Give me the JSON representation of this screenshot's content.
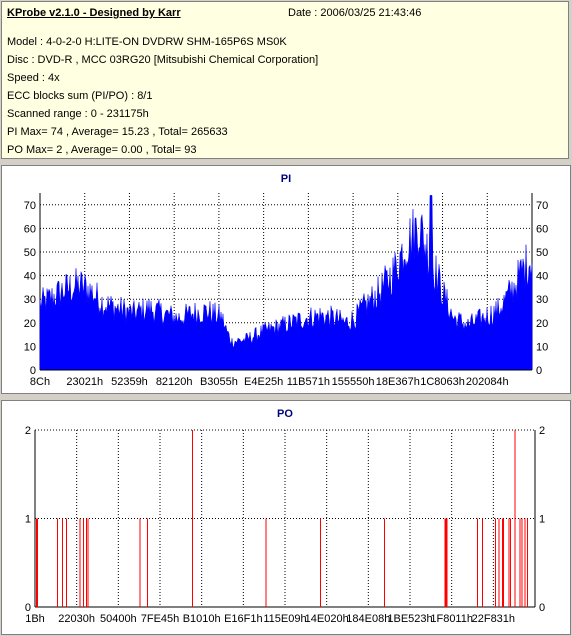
{
  "info": {
    "title": "KProbe v2.1.0 - Designed by Karr",
    "date": "Date : 2006/03/25 21:43:46",
    "model": "Model : 4-0-2-0 H:LITE-ON DVDRW SHM-165P6S MS0K",
    "disc": "Disc : DVD-R , MCC 03RG20   [Mitsubishi Chemical Corporation]",
    "speed": "Speed : 4x",
    "ecc": "ECC blocks sum (PI/PO) : 8/1",
    "range": "Scanned range : 0 - 231175h",
    "pi_stats": "PI Max= 74 , Average= 15.23 , Total= 265633",
    "po_stats": "PO Max= 2 , Average= 0.00 , Total= 93"
  },
  "colors": {
    "pi": "#0000ff",
    "po": "#ff0000",
    "title": "#000080",
    "grid": "#000000"
  },
  "chart_data": [
    {
      "type": "area",
      "title": "PI",
      "ylim": [
        0,
        75
      ],
      "yticks": [
        0,
        10,
        20,
        30,
        40,
        50,
        60,
        70
      ],
      "xlim": [
        0,
        231175
      ],
      "xtick_labels": [
        "8Ch",
        "23021h",
        "52359h",
        "82120h",
        "B3055h",
        "E4E25h",
        "11B571h",
        "155550h",
        "18E367h",
        "1C8063h",
        "202084h"
      ],
      "grid": "dotted",
      "series": [
        {
          "values_profile": [
            [
              0,
              28
            ],
            [
              0.02,
              30
            ],
            [
              0.05,
              34
            ],
            [
              0.08,
              36
            ],
            [
              0.1,
              34
            ],
            [
              0.13,
              28
            ],
            [
              0.16,
              26
            ],
            [
              0.19,
              24
            ],
            [
              0.22,
              26
            ],
            [
              0.25,
              24
            ],
            [
              0.28,
              22
            ],
            [
              0.31,
              24
            ],
            [
              0.34,
              25
            ],
            [
              0.37,
              22
            ],
            [
              0.38,
              16
            ],
            [
              0.39,
              12
            ],
            [
              0.42,
              13
            ],
            [
              0.45,
              16
            ],
            [
              0.48,
              18
            ],
            [
              0.51,
              20
            ],
            [
              0.54,
              22
            ],
            [
              0.57,
              23
            ],
            [
              0.6,
              22
            ],
            [
              0.62,
              20
            ],
            [
              0.64,
              22
            ],
            [
              0.66,
              27
            ],
            [
              0.69,
              33
            ],
            [
              0.72,
              42
            ],
            [
              0.74,
              52
            ],
            [
              0.76,
              58
            ],
            [
              0.77,
              62
            ],
            [
              0.78,
              55
            ],
            [
              0.8,
              44
            ],
            [
              0.82,
              32
            ],
            [
              0.84,
              22
            ],
            [
              0.87,
              19
            ],
            [
              0.9,
              22
            ],
            [
              0.93,
              25
            ],
            [
              0.96,
              34
            ],
            [
              0.98,
              42
            ],
            [
              1.0,
              48
            ]
          ],
          "max": 74
        }
      ]
    },
    {
      "type": "bar",
      "title": "PO",
      "ylim": [
        0,
        2
      ],
      "yticks": [
        0,
        1,
        2
      ],
      "xlim": [
        0,
        231175
      ],
      "xtick_labels": [
        "1Bh",
        "22030h",
        "50400h",
        "7FE45h",
        "B1010h",
        "E16F1h",
        "115E09h",
        "14E020h",
        "184E08h",
        "1BE523h",
        "1F8011h",
        "22F831h"
      ],
      "grid": "dotted",
      "series": [
        {
          "spikes_frac": [
            [
              0.003,
              1
            ],
            [
              0.005,
              1
            ],
            [
              0.045,
              1
            ],
            [
              0.055,
              1
            ],
            [
              0.063,
              1
            ],
            [
              0.09,
              1
            ],
            [
              0.097,
              1
            ],
            [
              0.103,
              1
            ],
            [
              0.106,
              1
            ],
            [
              0.21,
              1
            ],
            [
              0.225,
              1
            ],
            [
              0.315,
              2
            ],
            [
              0.462,
              1
            ],
            [
              0.571,
              1
            ],
            [
              0.699,
              1
            ],
            [
              0.82,
              1
            ],
            [
              0.822,
              1
            ],
            [
              0.824,
              1
            ],
            [
              0.885,
              1
            ],
            [
              0.895,
              1
            ],
            [
              0.921,
              1
            ],
            [
              0.928,
              1
            ],
            [
              0.935,
              1
            ],
            [
              0.937,
              1
            ],
            [
              0.948,
              1
            ],
            [
              0.951,
              1
            ],
            [
              0.96,
              2
            ],
            [
              0.97,
              1
            ],
            [
              0.974,
              1
            ],
            [
              0.98,
              1
            ],
            [
              0.985,
              1
            ]
          ]
        }
      ]
    }
  ]
}
